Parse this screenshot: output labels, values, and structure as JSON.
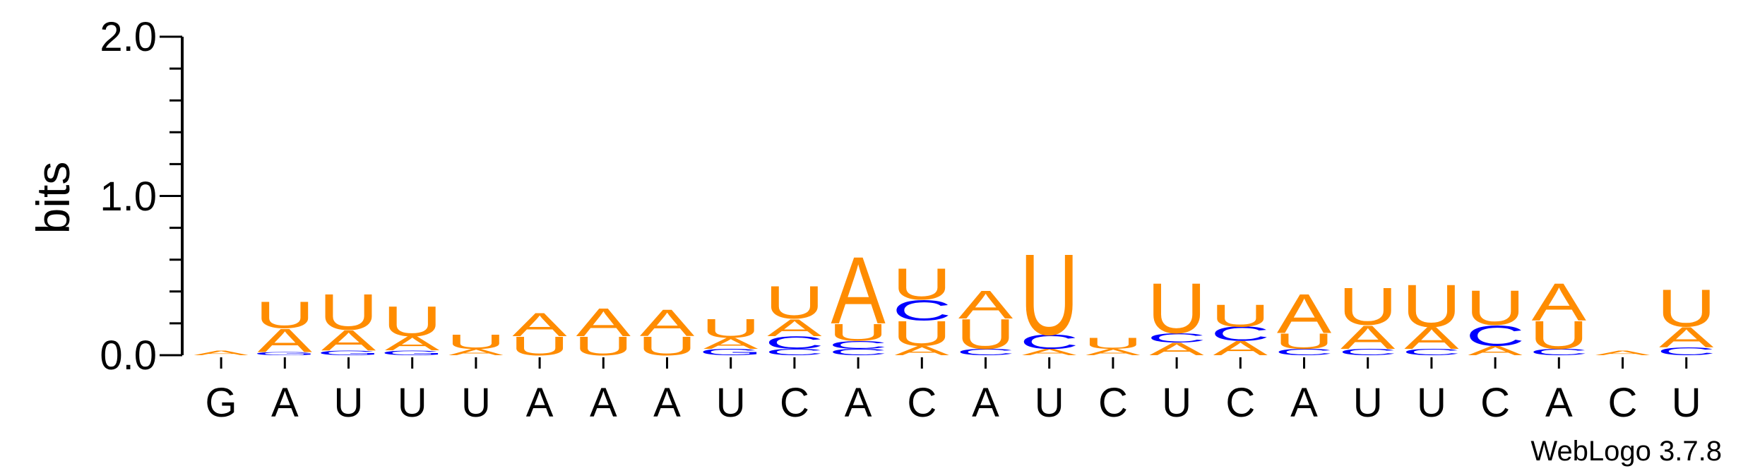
{
  "chart_data": {
    "type": "sequence-logo",
    "ylabel": "bits",
    "ylim": [
      0,
      2.0
    ],
    "yticks": [
      "0.0",
      "1.0",
      "2.0"
    ],
    "positions": [
      "G",
      "A",
      "U",
      "U",
      "U",
      "A",
      "A",
      "A",
      "U",
      "C",
      "A",
      "C",
      "A",
      "U",
      "C",
      "U",
      "C",
      "A",
      "U",
      "U",
      "C",
      "A",
      "C",
      "U"
    ],
    "colors": {
      "A": "#ff8c00",
      "U": "#ff8c00",
      "C": "#0000ff",
      "G": "#0000ff"
    },
    "stacks": [
      [
        [
          "A",
          0.03
        ]
      ],
      [
        [
          "G",
          0.02
        ],
        [
          "A",
          0.15
        ],
        [
          "U",
          0.17
        ]
      ],
      [
        [
          "G",
          0.03
        ],
        [
          "A",
          0.13
        ],
        [
          "U",
          0.23
        ]
      ],
      [
        [
          "G",
          0.03
        ],
        [
          "A",
          0.09
        ],
        [
          "U",
          0.19
        ]
      ],
      [
        [
          "A",
          0.04
        ],
        [
          "U",
          0.09
        ]
      ],
      [
        [
          "U",
          0.12
        ],
        [
          "A",
          0.15
        ]
      ],
      [
        [
          "U",
          0.12
        ],
        [
          "A",
          0.18
        ]
      ],
      [
        [
          "U",
          0.12
        ],
        [
          "A",
          0.17
        ]
      ],
      [
        [
          "G",
          0.04
        ],
        [
          "A",
          0.07
        ],
        [
          "U",
          0.12
        ]
      ],
      [
        [
          "C",
          0.04
        ],
        [
          "C",
          0.08
        ],
        [
          "A",
          0.11
        ],
        [
          "U",
          0.21
        ]
      ],
      [
        [
          "C",
          0.04
        ],
        [
          "C",
          0.05
        ],
        [
          "U",
          0.11
        ],
        [
          "A",
          0.43
        ]
      ],
      [
        [
          "A",
          0.06
        ],
        [
          "U",
          0.16
        ],
        [
          "C",
          0.13
        ],
        [
          "U",
          0.2
        ]
      ],
      [
        [
          "C",
          0.04
        ],
        [
          "U",
          0.19
        ],
        [
          "A",
          0.18
        ]
      ],
      [
        [
          "A",
          0.04
        ],
        [
          "C",
          0.09
        ],
        [
          "U",
          0.52
        ]
      ],
      [
        [
          "A",
          0.04
        ],
        [
          "U",
          0.07
        ]
      ],
      [
        [
          "A",
          0.08
        ],
        [
          "C",
          0.06
        ],
        [
          "U",
          0.32
        ]
      ],
      [
        [
          "A",
          0.09
        ],
        [
          "C",
          0.09
        ],
        [
          "U",
          0.14
        ]
      ],
      [
        [
          "C",
          0.04
        ],
        [
          "U",
          0.1
        ],
        [
          "A",
          0.25
        ]
      ],
      [
        [
          "C",
          0.04
        ],
        [
          "A",
          0.15
        ],
        [
          "U",
          0.24
        ]
      ],
      [
        [
          "C",
          0.04
        ],
        [
          "A",
          0.14
        ],
        [
          "U",
          0.27
        ]
      ],
      [
        [
          "A",
          0.06
        ],
        [
          "C",
          0.13
        ],
        [
          "U",
          0.22
        ]
      ],
      [
        [
          "C",
          0.04
        ],
        [
          "U",
          0.18
        ],
        [
          "A",
          0.24
        ]
      ],
      [
        [
          "A",
          0.03
        ]
      ],
      [
        [
          "C",
          0.05
        ],
        [
          "A",
          0.13
        ],
        [
          "U",
          0.24
        ]
      ]
    ]
  },
  "credit": "WebLogo 3.7.8"
}
